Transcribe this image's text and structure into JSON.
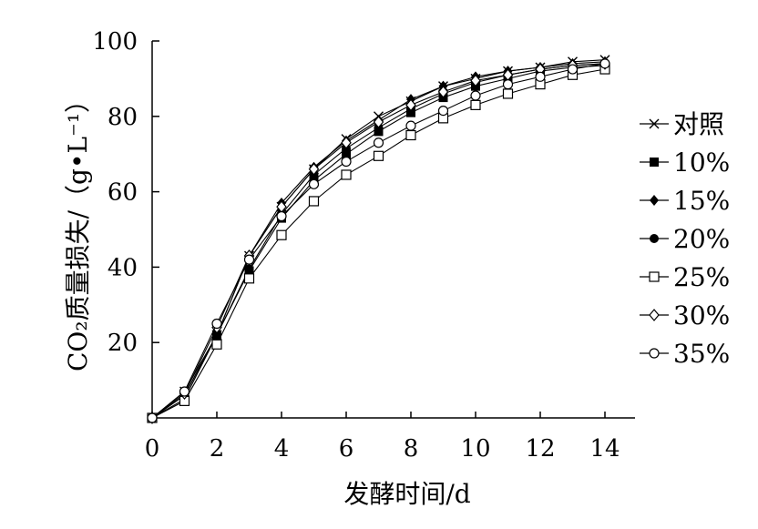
{
  "chart_data": {
    "type": "line",
    "title": "",
    "xlabel": "发酵时间/d",
    "ylabel": "CO₂质量损失/（g•L⁻¹）",
    "xlim": [
      0,
      14
    ],
    "ylim": [
      0,
      100
    ],
    "xticks": [
      0,
      2,
      4,
      6,
      8,
      10,
      12,
      14
    ],
    "yticks": [
      20,
      40,
      60,
      80,
      100
    ],
    "grid": false,
    "legend_position": "right",
    "x": [
      0,
      1,
      2,
      3,
      4,
      5,
      6,
      7,
      8,
      9,
      10,
      11,
      12,
      13,
      14
    ],
    "series": [
      {
        "name": "对照",
        "marker": "x",
        "values": [
          0,
          7,
          22,
          43,
          56,
          66,
          74,
          80,
          84,
          88,
          90,
          92,
          93,
          94.5,
          95
        ]
      },
      {
        "name": "10%",
        "marker": "filled-square",
        "values": [
          0,
          5,
          22,
          39,
          53,
          63,
          70,
          76,
          81,
          85,
          88,
          90,
          92,
          93,
          93.5
        ]
      },
      {
        "name": "15%",
        "marker": "filled-diamond",
        "values": [
          0,
          6,
          22,
          43,
          57,
          66.5,
          73.5,
          79,
          84.5,
          88,
          90.5,
          92,
          93,
          94,
          94.5
        ]
      },
      {
        "name": "20%",
        "marker": "filled-circle",
        "values": [
          0,
          6,
          22,
          39.5,
          54,
          64.5,
          71.5,
          77,
          82,
          86,
          89,
          91,
          92.5,
          93.5,
          94
        ]
      },
      {
        "name": "25%",
        "marker": "open-square",
        "values": [
          0,
          4.5,
          19.5,
          37,
          48.5,
          57.5,
          64.5,
          69.5,
          75,
          79.5,
          83,
          86,
          88.5,
          91,
          92.5
        ]
      },
      {
        "name": "30%",
        "marker": "open-diamond",
        "values": [
          0,
          6.5,
          24,
          43,
          56,
          66,
          73,
          78.5,
          83,
          86.5,
          89.5,
          91,
          92.5,
          93.5,
          94
        ]
      },
      {
        "name": "35%",
        "marker": "open-circle",
        "values": [
          0,
          7,
          25,
          42,
          53.5,
          62,
          68,
          73,
          77.5,
          81.5,
          85.5,
          88.5,
          90.5,
          92.5,
          94
        ]
      }
    ]
  }
}
